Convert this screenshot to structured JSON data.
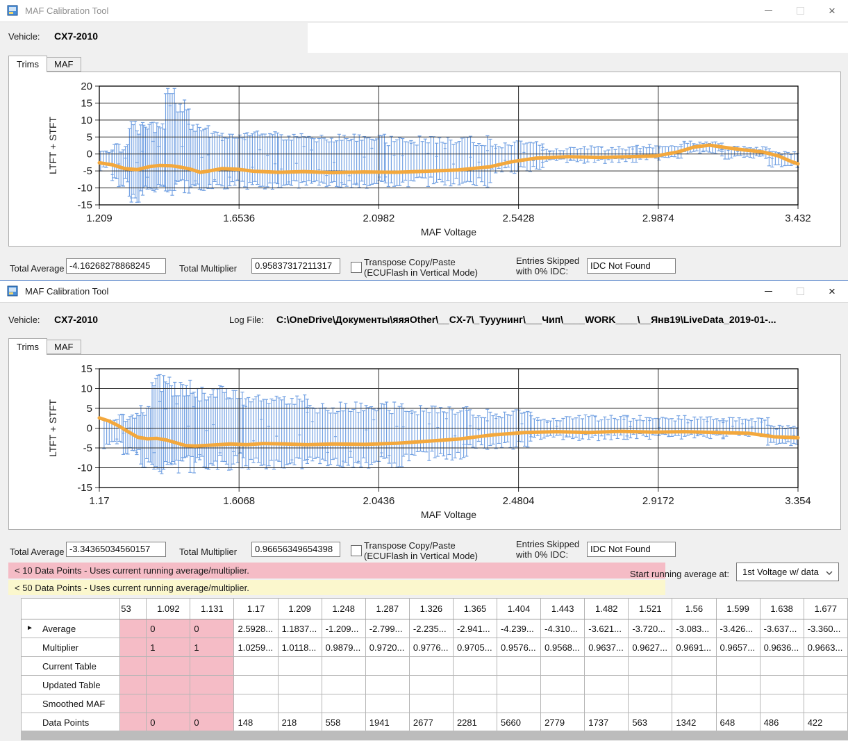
{
  "window1": {
    "title": "MAF Calibration Tool",
    "vehicle_label": "Vehicle:",
    "vehicle_value": "CX7-2010",
    "tab_trims": "Trims",
    "tab_maf": "MAF",
    "total_average_label": "Total Average",
    "total_average_value": "-4.16268278868245",
    "total_multiplier_label": "Total Multiplier",
    "total_multiplier_value": "0.95837317211317",
    "transpose_line1": "Transpose Copy/Paste",
    "transpose_line2": "(ECUFlash in Vertical Mode)",
    "entries_line1": "Entries Skipped",
    "entries_line2": "with 0% IDC:",
    "idc_value": "IDC Not Found"
  },
  "window2": {
    "title": "MAF Calibration Tool",
    "vehicle_label": "Vehicle:",
    "vehicle_value": "CX7-2010",
    "log_file_label": "Log File:",
    "log_file_value": "C:\\OneDrive\\Документы\\яяяOther\\__CX-7\\_Тууунинг\\___Чип\\____WORK____\\__Янв19\\LiveData_2019-01-...",
    "tab_trims": "Trims",
    "tab_maf": "MAF",
    "total_average_label": "Total Average",
    "total_average_value": "-3.34365034560157",
    "total_multiplier_label": "Total Multiplier",
    "total_multiplier_value": "0.96656349654398",
    "transpose_line1": "Transpose Copy/Paste",
    "transpose_line2": "(ECUFlash in Vertical Mode)",
    "entries_line1": "Entries Skipped",
    "entries_line2": "with 0% IDC:",
    "idc_value": "IDC Not Found",
    "notice_pink": "< 10 Data Points - Uses current running average/multiplier.",
    "notice_yellow": "< 50 Data Points - Uses current running average/multiplier.",
    "start_avg_label": "Start running average at:",
    "start_avg_value": "1st Voltage w/ data"
  },
  "colors": {
    "pink": "#f5bcc6",
    "yellow": "#fbf7cd",
    "bar_blue": "#699be0",
    "line_orange": "#f3a83d",
    "active_border": "#3a6fbf"
  },
  "table": {
    "columns": [
      "",
      "53",
      "1.092",
      "1.131",
      "1.17",
      "1.209",
      "1.248",
      "1.287",
      "1.326",
      "1.365",
      "1.404",
      "1.443",
      "1.482",
      "1.521",
      "1.56",
      "1.599",
      "1.638",
      "1.677"
    ],
    "pink_value_columns": [
      0,
      1,
      2
    ],
    "rows": [
      {
        "label": "Average",
        "current": true,
        "cells": [
          "",
          "0",
          "0",
          "2.5928...",
          "1.1837...",
          "-1.209...",
          "-2.799...",
          "-2.235...",
          "-2.941...",
          "-4.239...",
          "-4.310...",
          "-3.621...",
          "-3.720...",
          "-3.083...",
          "-3.426...",
          "-3.637...",
          "-3.360..."
        ]
      },
      {
        "label": "Multiplier",
        "current": false,
        "cells": [
          "",
          "1",
          "1",
          "1.0259...",
          "1.0118...",
          "0.9879...",
          "0.9720...",
          "0.9776...",
          "0.9705...",
          "0.9576...",
          "0.9568...",
          "0.9637...",
          "0.9627...",
          "0.9691...",
          "0.9657...",
          "0.9636...",
          "0.9663..."
        ]
      },
      {
        "label": "Current Table",
        "current": false,
        "cells": [
          "",
          "",
          "",
          "",
          "",
          "",
          "",
          "",
          "",
          "",
          "",
          "",
          "",
          "",
          "",
          "",
          ""
        ]
      },
      {
        "label": "Updated Table",
        "current": false,
        "cells": [
          "",
          "",
          "",
          "",
          "",
          "",
          "",
          "",
          "",
          "",
          "",
          "",
          "",
          "",
          "",
          "",
          ""
        ]
      },
      {
        "label": "Smoothed MAF",
        "current": false,
        "cells": [
          "",
          "",
          "",
          "",
          "",
          "",
          "",
          "",
          "",
          "",
          "",
          "",
          "",
          "",
          "",
          "",
          ""
        ]
      },
      {
        "label": "Data Points",
        "current": false,
        "cells": [
          "",
          "0",
          "0",
          "148",
          "218",
          "558",
          "1941",
          "2677",
          "2281",
          "5660",
          "2779",
          "1737",
          "563",
          "1342",
          "648",
          "486",
          "422"
        ]
      }
    ]
  },
  "chart_data": [
    {
      "type": "error-bar",
      "ylabel": "LTFT + STFT",
      "xlabel": "MAF Voltage",
      "xlim": [
        1.209,
        3.432
      ],
      "ylim": [
        -15,
        20
      ],
      "x_ticks": [
        "1.209",
        "1.6536",
        "2.0982",
        "2.5428",
        "2.9874",
        "3.432"
      ],
      "y_ticks": [
        20,
        15,
        10,
        5,
        0,
        -5,
        -10,
        -15
      ],
      "bar_groups": [
        {
          "x0": 1.213,
          "x1": 1.25,
          "step": 0.009,
          "lo": -5.2,
          "hi": 2.6,
          "j": 2.2
        },
        {
          "x0": 1.25,
          "x1": 1.305,
          "step": 0.007,
          "lo": -9.8,
          "hi": 3.4,
          "j": 3.0
        },
        {
          "x0": 1.305,
          "x1": 1.35,
          "step": 0.006,
          "lo": -14.4,
          "hi": 9.8,
          "j": 4.0
        },
        {
          "x0": 1.35,
          "x1": 1.42,
          "step": 0.006,
          "lo": -11.8,
          "hi": 9.4,
          "j": 3.2
        },
        {
          "x0": 1.42,
          "x1": 1.452,
          "step": 0.007,
          "lo": -12.2,
          "hi": 19.6,
          "j": 2.0
        },
        {
          "x0": 1.452,
          "x1": 1.5,
          "step": 0.007,
          "lo": -11.6,
          "hi": 16.0,
          "j": 4.0
        },
        {
          "x0": 1.5,
          "x1": 1.56,
          "step": 0.007,
          "lo": -11.0,
          "hi": 9.2,
          "j": 2.6
        },
        {
          "x0": 1.56,
          "x1": 1.78,
          "step": 0.008,
          "lo": -10.4,
          "hi": 6.8,
          "j": 2.6
        },
        {
          "x0": 1.78,
          "x1": 2.12,
          "step": 0.008,
          "lo": -10.2,
          "hi": 6.0,
          "j": 2.6
        },
        {
          "x0": 2.12,
          "x1": 2.46,
          "step": 0.009,
          "lo": -9.8,
          "hi": 5.4,
          "j": 3.0
        },
        {
          "x0": 2.46,
          "x1": 2.62,
          "step": 0.01,
          "lo": -5.8,
          "hi": 4.0,
          "j": 2.2
        },
        {
          "x0": 2.62,
          "x1": 2.92,
          "step": 0.011,
          "lo": -2.8,
          "hi": 2.4,
          "j": 1.5
        },
        {
          "x0": 2.92,
          "x1": 3.06,
          "step": 0.01,
          "lo": -1.8,
          "hi": 2.8,
          "j": 1.2
        },
        {
          "x0": 3.06,
          "x1": 3.19,
          "step": 0.01,
          "lo": 0.0,
          "hi": 3.8,
          "j": 1.1
        },
        {
          "x0": 3.19,
          "x1": 3.34,
          "step": 0.01,
          "lo": -1.6,
          "hi": 2.4,
          "j": 1.3
        },
        {
          "x0": 3.34,
          "x1": 3.43,
          "step": 0.01,
          "lo": -4.0,
          "hi": 0.8,
          "j": 1.0
        }
      ],
      "line": [
        [
          1.209,
          -2.6
        ],
        [
          1.25,
          -3.2
        ],
        [
          1.29,
          -4.3
        ],
        [
          1.33,
          -4.6
        ],
        [
          1.37,
          -3.7
        ],
        [
          1.4,
          -3.4
        ],
        [
          1.44,
          -3.5
        ],
        [
          1.47,
          -3.9
        ],
        [
          1.5,
          -4.5
        ],
        [
          1.53,
          -5.4
        ],
        [
          1.56,
          -5.0
        ],
        [
          1.6,
          -4.3
        ],
        [
          1.65,
          -4.5
        ],
        [
          1.7,
          -5.1
        ],
        [
          1.78,
          -5.4
        ],
        [
          1.86,
          -5.2
        ],
        [
          1.95,
          -5.5
        ],
        [
          2.05,
          -5.3
        ],
        [
          2.15,
          -5.4
        ],
        [
          2.25,
          -5.1
        ],
        [
          2.35,
          -4.7
        ],
        [
          2.45,
          -3.8
        ],
        [
          2.52,
          -2.3
        ],
        [
          2.6,
          -1.2
        ],
        [
          2.7,
          -0.8
        ],
        [
          2.8,
          -1.0
        ],
        [
          2.9,
          -0.8
        ],
        [
          2.98,
          -0.6
        ],
        [
          3.05,
          0.6
        ],
        [
          3.1,
          2.0
        ],
        [
          3.15,
          2.6
        ],
        [
          3.2,
          1.9
        ],
        [
          3.26,
          1.2
        ],
        [
          3.32,
          0.6
        ],
        [
          3.37,
          -0.6
        ],
        [
          3.41,
          -2.2
        ],
        [
          3.432,
          -2.9
        ]
      ]
    },
    {
      "type": "error-bar",
      "ylabel": "LTFT + STFT",
      "xlabel": "MAF Voltage",
      "xlim": [
        1.17,
        3.354
      ],
      "ylim": [
        -15,
        15
      ],
      "x_ticks": [
        "1.17",
        "1.6068",
        "2.0436",
        "2.4804",
        "2.9172",
        "3.354"
      ],
      "y_ticks": [
        15,
        10,
        5,
        0,
        -5,
        -10,
        -15
      ],
      "bar_groups": [
        {
          "x0": 1.185,
          "x1": 1.245,
          "step": 0.008,
          "lo": -5.4,
          "hi": 3.8,
          "j": 2.2
        },
        {
          "x0": 1.245,
          "x1": 1.3,
          "step": 0.007,
          "lo": -6.8,
          "hi": 3.8,
          "j": 2.2
        },
        {
          "x0": 1.3,
          "x1": 1.335,
          "step": 0.006,
          "lo": -10.0,
          "hi": 5.8,
          "j": 2.6
        },
        {
          "x0": 1.335,
          "x1": 1.4,
          "step": 0.006,
          "lo": -12.4,
          "hi": 13.6,
          "j": 4.5
        },
        {
          "x0": 1.4,
          "x1": 1.47,
          "step": 0.006,
          "lo": -11.4,
          "hi": 12.2,
          "j": 4.5
        },
        {
          "x0": 1.47,
          "x1": 1.62,
          "step": 0.007,
          "lo": -10.8,
          "hi": 11.2,
          "j": 4.5
        },
        {
          "x0": 1.62,
          "x1": 1.82,
          "step": 0.008,
          "lo": -10.4,
          "hi": 8.4,
          "j": 3.2
        },
        {
          "x0": 1.82,
          "x1": 2.12,
          "step": 0.008,
          "lo": -10.2,
          "hi": 6.8,
          "j": 3.2
        },
        {
          "x0": 2.12,
          "x1": 2.32,
          "step": 0.009,
          "lo": -8.4,
          "hi": 5.8,
          "j": 2.6
        },
        {
          "x0": 2.32,
          "x1": 2.52,
          "step": 0.009,
          "lo": -5.4,
          "hi": 4.8,
          "j": 2.2
        },
        {
          "x0": 2.52,
          "x1": 2.82,
          "step": 0.01,
          "lo": -3.2,
          "hi": 3.4,
          "j": 1.6
        },
        {
          "x0": 2.82,
          "x1": 3.12,
          "step": 0.01,
          "lo": -2.8,
          "hi": 3.2,
          "j": 1.5
        },
        {
          "x0": 3.12,
          "x1": 3.26,
          "step": 0.01,
          "lo": -2.4,
          "hi": 2.8,
          "j": 1.2
        },
        {
          "x0": 3.26,
          "x1": 3.354,
          "step": 0.009,
          "lo": -4.4,
          "hi": 0.8,
          "j": 1.0
        }
      ],
      "line": [
        [
          1.17,
          2.6
        ],
        [
          1.2,
          1.8
        ],
        [
          1.23,
          0.6
        ],
        [
          1.26,
          -0.9
        ],
        [
          1.29,
          -2.3
        ],
        [
          1.32,
          -2.7
        ],
        [
          1.35,
          -2.6
        ],
        [
          1.38,
          -3.0
        ],
        [
          1.41,
          -3.7
        ],
        [
          1.44,
          -4.4
        ],
        [
          1.47,
          -4.5
        ],
        [
          1.52,
          -4.3
        ],
        [
          1.58,
          -4.0
        ],
        [
          1.63,
          -4.2
        ],
        [
          1.68,
          -3.9
        ],
        [
          1.75,
          -4.0
        ],
        [
          1.82,
          -4.2
        ],
        [
          1.9,
          -4.0
        ],
        [
          2.0,
          -4.1
        ],
        [
          2.1,
          -3.8
        ],
        [
          2.2,
          -3.3
        ],
        [
          2.3,
          -2.7
        ],
        [
          2.4,
          -1.7
        ],
        [
          2.5,
          -1.1
        ],
        [
          2.6,
          -0.9
        ],
        [
          2.7,
          -1.1
        ],
        [
          2.8,
          -0.8
        ],
        [
          2.9,
          -1.0
        ],
        [
          3.0,
          -0.9
        ],
        [
          3.1,
          -1.1
        ],
        [
          3.2,
          -1.3
        ],
        [
          3.28,
          -2.2
        ],
        [
          3.354,
          -2.4
        ]
      ]
    }
  ]
}
